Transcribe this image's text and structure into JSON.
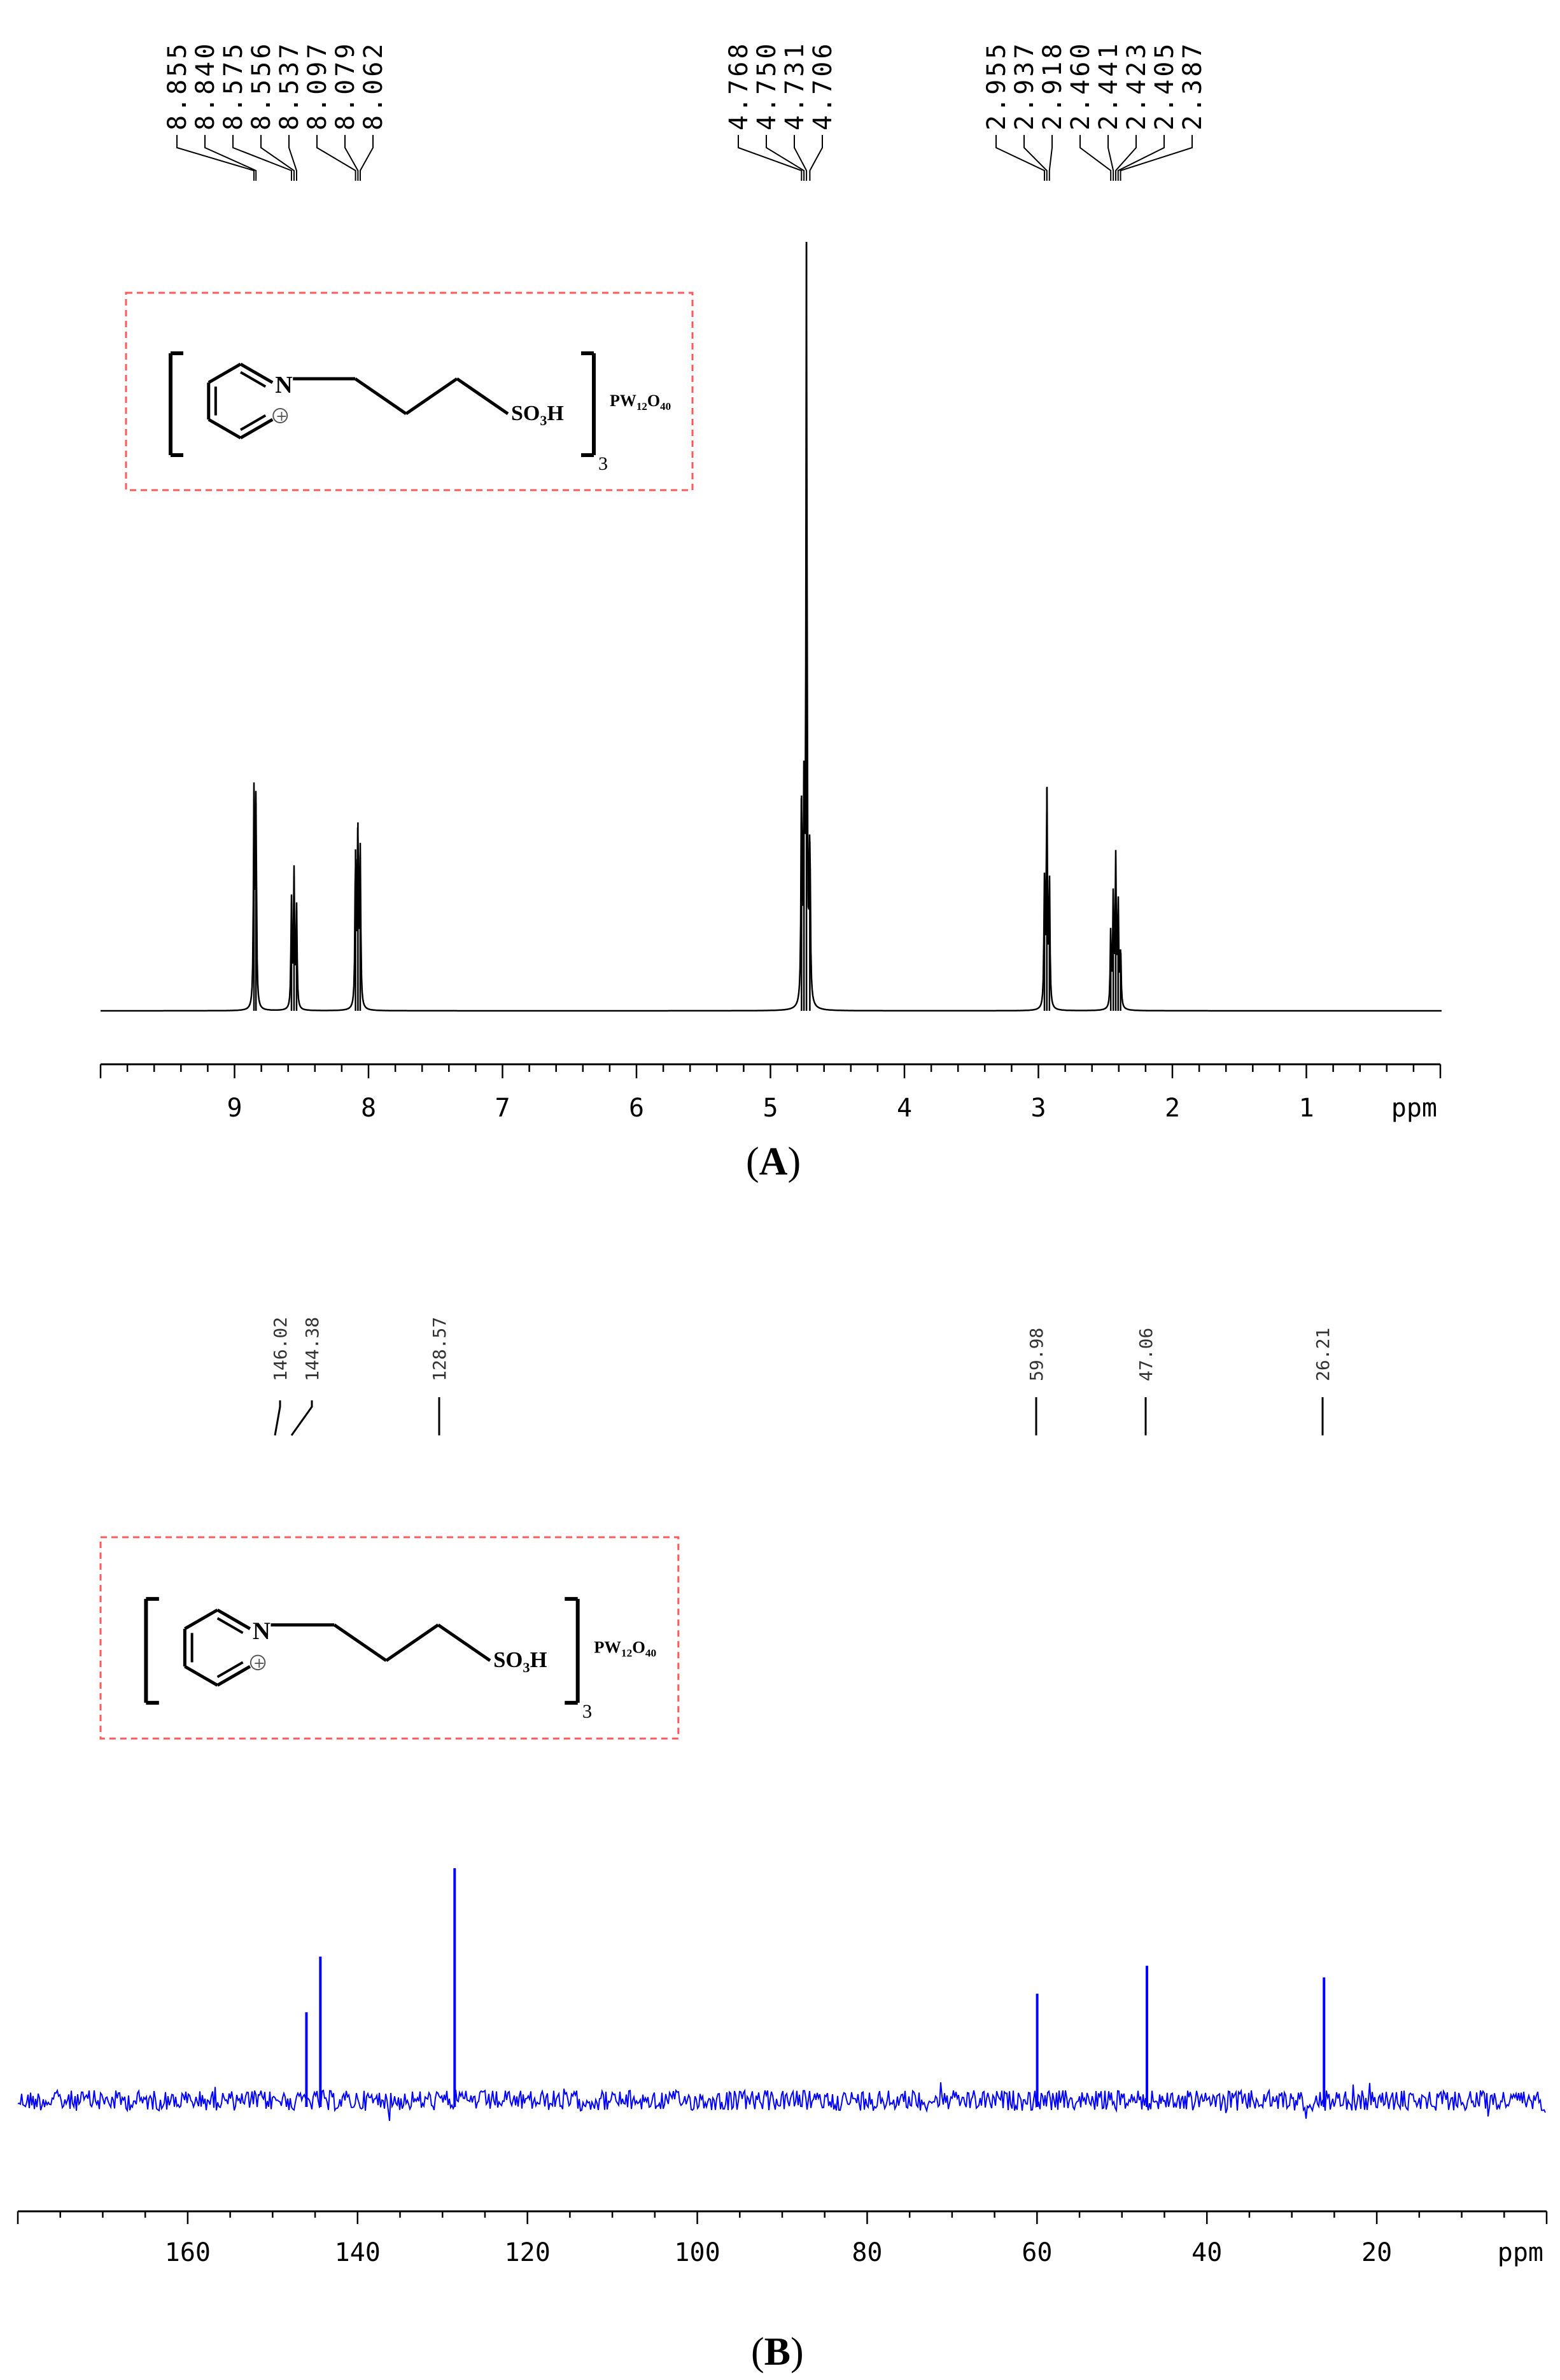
{
  "panels": [
    {
      "id": "A",
      "label_open": "(",
      "label_letter": "A",
      "label_close": ")",
      "structure": {
        "cation_group": "SO3H",
        "sulfonic_text": "SO",
        "sulfonic_sub": "3",
        "sulfonic_h": "H",
        "charge_symbol": "+",
        "nitrogen": "N",
        "multiplier": "3",
        "anion_p": "PW",
        "anion_sub1": "12",
        "anion_o": "O",
        "anion_sub2": "40",
        "box_color": "#ff5a5a"
      },
      "chart_data": {
        "type": "line",
        "nucleus": "1H",
        "color": "#000000",
        "xlim": [
          10.0,
          0.0
        ],
        "x_unit_label": "ppm",
        "ticks": [
          "9",
          "8",
          "7",
          "6",
          "5",
          "4",
          "3",
          "2",
          "1"
        ],
        "tick_values": [
          9,
          8,
          7,
          6,
          5,
          4,
          3,
          2,
          1
        ],
        "peak_labels": [
          "8.855",
          "8.840",
          "8.575",
          "8.556",
          "8.537",
          "8.097",
          "8.079",
          "8.062",
          "4.768",
          "4.750",
          "4.731",
          "4.706",
          "2.955",
          "2.937",
          "2.918",
          "2.460",
          "2.441",
          "2.423",
          "2.405",
          "2.387"
        ],
        "peaks": [
          {
            "ppm": 8.855,
            "h": 0.275
          },
          {
            "ppm": 8.84,
            "h": 0.27
          },
          {
            "ppm": 8.575,
            "h": 0.14
          },
          {
            "ppm": 8.556,
            "h": 0.175
          },
          {
            "ppm": 8.537,
            "h": 0.13
          },
          {
            "ppm": 8.097,
            "h": 0.21
          },
          {
            "ppm": 8.079,
            "h": 0.245
          },
          {
            "ppm": 8.062,
            "h": 0.2
          },
          {
            "ppm": 4.768,
            "h": 0.28
          },
          {
            "ppm": 4.75,
            "h": 0.26
          },
          {
            "ppm": 4.731,
            "h": 1.0
          },
          {
            "ppm": 4.706,
            "h": 0.22
          },
          {
            "ppm": 2.955,
            "h": 0.16
          },
          {
            "ppm": 2.937,
            "h": 0.29
          },
          {
            "ppm": 2.918,
            "h": 0.17
          },
          {
            "ppm": 2.46,
            "h": 0.1
          },
          {
            "ppm": 2.441,
            "h": 0.145
          },
          {
            "ppm": 2.423,
            "h": 0.19
          },
          {
            "ppm": 2.405,
            "h": 0.14
          },
          {
            "ppm": 2.387,
            "h": 0.08
          }
        ]
      }
    },
    {
      "id": "B",
      "label_open": "(",
      "label_letter": "B",
      "label_close": ")",
      "chart_data": {
        "type": "line",
        "nucleus": "13C",
        "color": "#0000ff",
        "xlim": [
          180,
          0
        ],
        "x_unit_label": "ppm",
        "ticks": [
          "160",
          "140",
          "120",
          "100",
          "80",
          "60",
          "40",
          "20"
        ],
        "tick_values": [
          160,
          140,
          120,
          100,
          80,
          60,
          40,
          20
        ],
        "peak_labels": [
          "146.02",
          "144.38",
          "128.57",
          "59.98",
          "47.06",
          "26.21"
        ],
        "peaks": [
          {
            "ppm": 146.02,
            "h": 0.38
          },
          {
            "ppm": 144.38,
            "h": 0.62
          },
          {
            "ppm": 128.57,
            "h": 1.0
          },
          {
            "ppm": 59.98,
            "h": 0.46
          },
          {
            "ppm": 47.06,
            "h": 0.58
          },
          {
            "ppm": 26.21,
            "h": 0.53
          }
        ]
      }
    }
  ]
}
